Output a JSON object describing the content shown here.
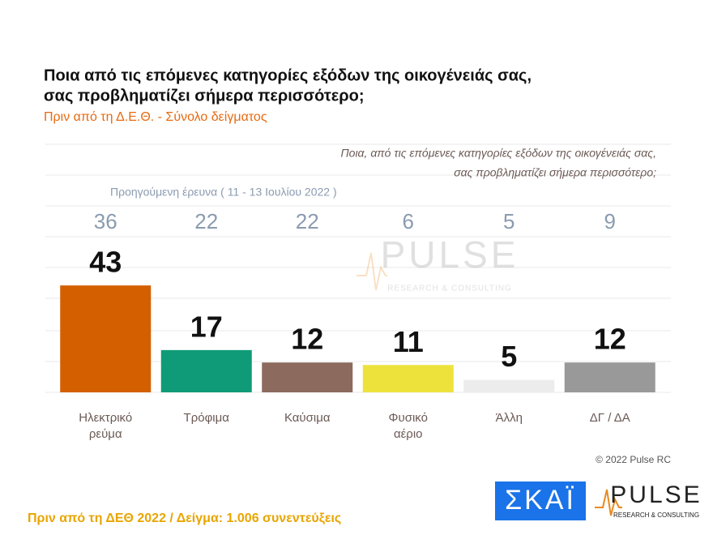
{
  "chart_data": {
    "type": "bar",
    "title": [
      "Ποια από τις επόμενες κατηγορίες εξόδων της οικογένειάς σας,",
      "σας προβληματίζει σήμερα περισσότερο;"
    ],
    "subtitle": "Πριν από τη Δ.Ε.Θ.  -  Σύνολο δείγματος",
    "question_note": [
      "Ποια, από τις επόμενες κατηγορίες εξόδων της οικογένειάς σας,",
      "σας προβληματίζει σήμερα περισσότερο;"
    ],
    "previous_label": "Προηγούμενη έρευνα  ( 11 - 13 Ιουλίου  2022 )",
    "previous_values": [
      36,
      22,
      22,
      6,
      5,
      9
    ],
    "categories": [
      [
        "Ηλεκτρικό",
        "ρεύμα"
      ],
      [
        "Τρόφιμα"
      ],
      [
        "Καύσιμα"
      ],
      [
        "Φυσικό",
        "αέριο"
      ],
      [
        "Άλλη"
      ],
      [
        "ΔΓ / ΔΑ"
      ]
    ],
    "values": [
      43,
      17,
      12,
      11,
      5,
      12
    ],
    "colors": [
      "#d45f00",
      "#0f9b77",
      "#8c6a5d",
      "#ede23c",
      "#ececec",
      "#999999"
    ],
    "ylim": [
      0,
      75
    ],
    "copyright": "© 2022 Pulse RC",
    "footnote": "Πριν από τη ΔΕΘ  2022  /  Δείγμα:  1.006 συνεντεύξεις",
    "logos": {
      "skai": "ΣΚΑΪ",
      "pulse": "PULSE",
      "pulse_tagline": "RESEARCH & CONSULTING"
    }
  }
}
